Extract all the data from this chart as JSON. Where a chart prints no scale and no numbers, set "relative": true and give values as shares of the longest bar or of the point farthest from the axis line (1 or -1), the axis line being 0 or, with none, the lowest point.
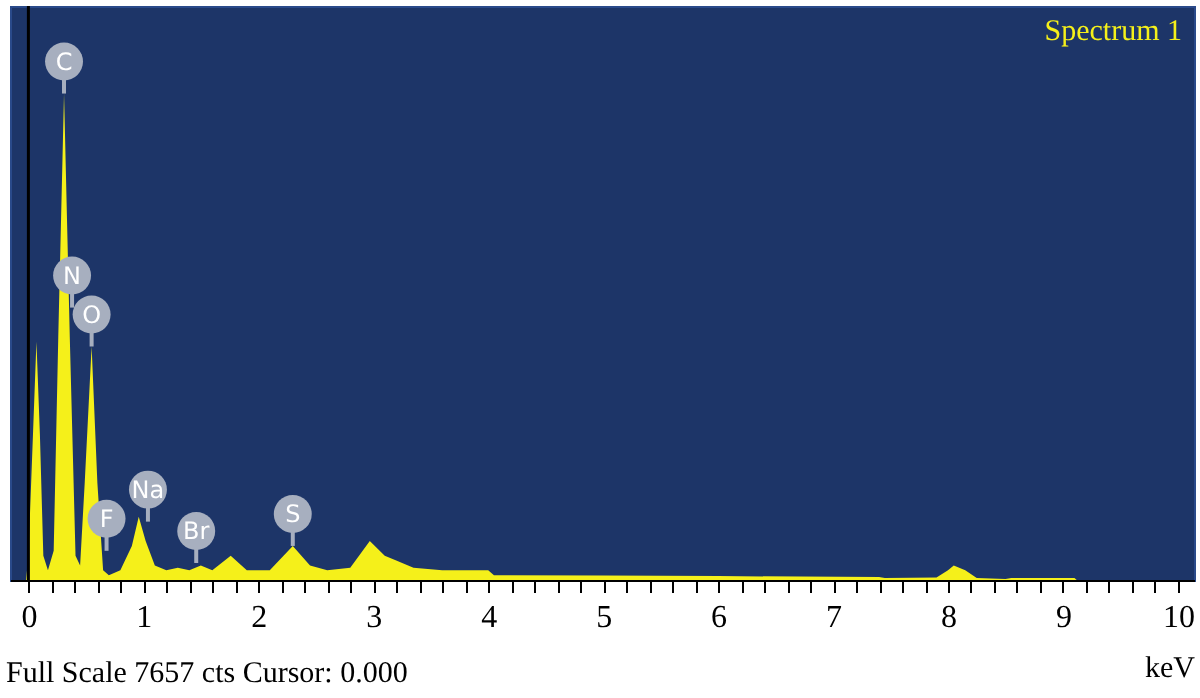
{
  "chart_data": {
    "type": "area",
    "relative": true,
    "xlabel": "keV",
    "xlim": [
      -0.16,
      10.14
    ],
    "xticks": [
      0,
      {
        "value": 0.2,
        "label": null
      },
      {
        "value": 0.4,
        "label": null
      },
      {
        "value": 0.6,
        "label": null
      },
      {
        "value": 0.8,
        "label": null
      },
      1,
      {
        "value": 1.2,
        "label": null
      },
      {
        "value": 1.4,
        "label": null
      },
      {
        "value": 1.6,
        "label": null
      },
      {
        "value": 1.8,
        "label": null
      },
      2,
      {
        "value": 2.2,
        "label": null
      },
      {
        "value": 2.4,
        "label": null
      },
      {
        "value": 2.6,
        "label": null
      },
      {
        "value": 2.8,
        "label": null
      },
      3,
      {
        "value": 3.2,
        "label": null
      },
      {
        "value": 3.4,
        "label": null
      },
      {
        "value": 3.6,
        "label": null
      },
      {
        "value": 3.8,
        "label": null
      },
      4,
      {
        "value": 4.2,
        "label": null
      },
      {
        "value": 4.4,
        "label": null
      },
      {
        "value": 4.6,
        "label": null
      },
      {
        "value": 4.8,
        "label": null
      },
      5,
      {
        "value": 5.2,
        "label": null
      },
      {
        "value": 5.4,
        "label": null
      },
      {
        "value": 5.6,
        "label": null
      },
      {
        "value": 5.8,
        "label": null
      },
      6,
      {
        "value": 6.2,
        "label": null
      },
      {
        "value": 6.4,
        "label": null
      },
      {
        "value": 6.6,
        "label": null
      },
      {
        "value": 6.8,
        "label": null
      },
      7,
      {
        "value": 7.2,
        "label": null
      },
      {
        "value": 7.4,
        "label": null
      },
      {
        "value": 7.6,
        "label": null
      },
      {
        "value": 7.8,
        "label": null
      },
      8,
      {
        "value": 8.2,
        "label": null
      },
      {
        "value": 8.4,
        "label": null
      },
      {
        "value": 8.6,
        "label": null
      },
      {
        "value": 8.8,
        "label": null
      },
      9,
      {
        "value": 9.2,
        "label": null
      },
      {
        "value": 9.4,
        "label": null
      },
      {
        "value": 9.6,
        "label": null
      },
      {
        "value": 9.8,
        "label": null
      },
      10
    ],
    "x": [
      -0.02,
      0.0,
      0.04,
      0.07,
      0.1,
      0.13,
      0.17,
      0.22,
      0.26,
      0.31,
      0.36,
      0.41,
      0.45,
      0.49,
      0.55,
      0.6,
      0.65,
      0.7,
      0.8,
      0.9,
      0.96,
      1.02,
      1.1,
      1.2,
      1.3,
      1.4,
      1.5,
      1.6,
      1.76,
      1.9,
      2.1,
      2.3,
      2.45,
      2.6,
      2.8,
      2.97,
      3.1,
      3.2,
      3.35,
      3.6,
      4.0,
      4.05,
      5.0,
      6.0,
      7.4,
      7.45,
      7.9,
      8.0,
      8.05,
      8.15,
      8.25,
      8.5,
      8.55,
      9.1,
      9.12
    ],
    "series": [
      {
        "color": "#f5f01a",
        "values": [
          0,
          0.05,
          0.3,
          0.49,
          0.3,
          0.05,
          0.02,
          0.06,
          0.5,
          1.0,
          0.5,
          0.05,
          0.03,
          0.2,
          0.48,
          0.2,
          0.02,
          0.01,
          0.02,
          0.07,
          0.13,
          0.08,
          0.03,
          0.02,
          0.025,
          0.02,
          0.03,
          0.02,
          0.05,
          0.02,
          0.02,
          0.07,
          0.03,
          0.02,
          0.025,
          0.08,
          0.05,
          0.04,
          0.025,
          0.02,
          0.02,
          0.01,
          0.009,
          0.008,
          0.006,
          0.004,
          0.005,
          0.02,
          0.03,
          0.02,
          0.004,
          0.002,
          0.004,
          0.004,
          0
        ]
      }
    ],
    "ref_lines": [
      {
        "axis": "x",
        "value": 0,
        "color": "#000000"
      }
    ],
    "annotations": [
      "Spectrum 1",
      "Full Scale 7657 cts Cursor: 0.000",
      {
        "text": "C",
        "x": 0.31,
        "y": 1.0
      },
      {
        "text": "O",
        "x": 0.55,
        "y": 0.48
      },
      {
        "text": "N",
        "x": 0.38,
        "y": 0.56
      },
      {
        "text": "F",
        "x": 0.68,
        "y": 0.06
      },
      {
        "text": "Na",
        "x": 1.04,
        "y": 0.12
      },
      {
        "text": "Br",
        "x": 1.46,
        "y": 0.035
      },
      {
        "text": "S",
        "x": 2.3,
        "y": 0.07
      }
    ]
  }
}
